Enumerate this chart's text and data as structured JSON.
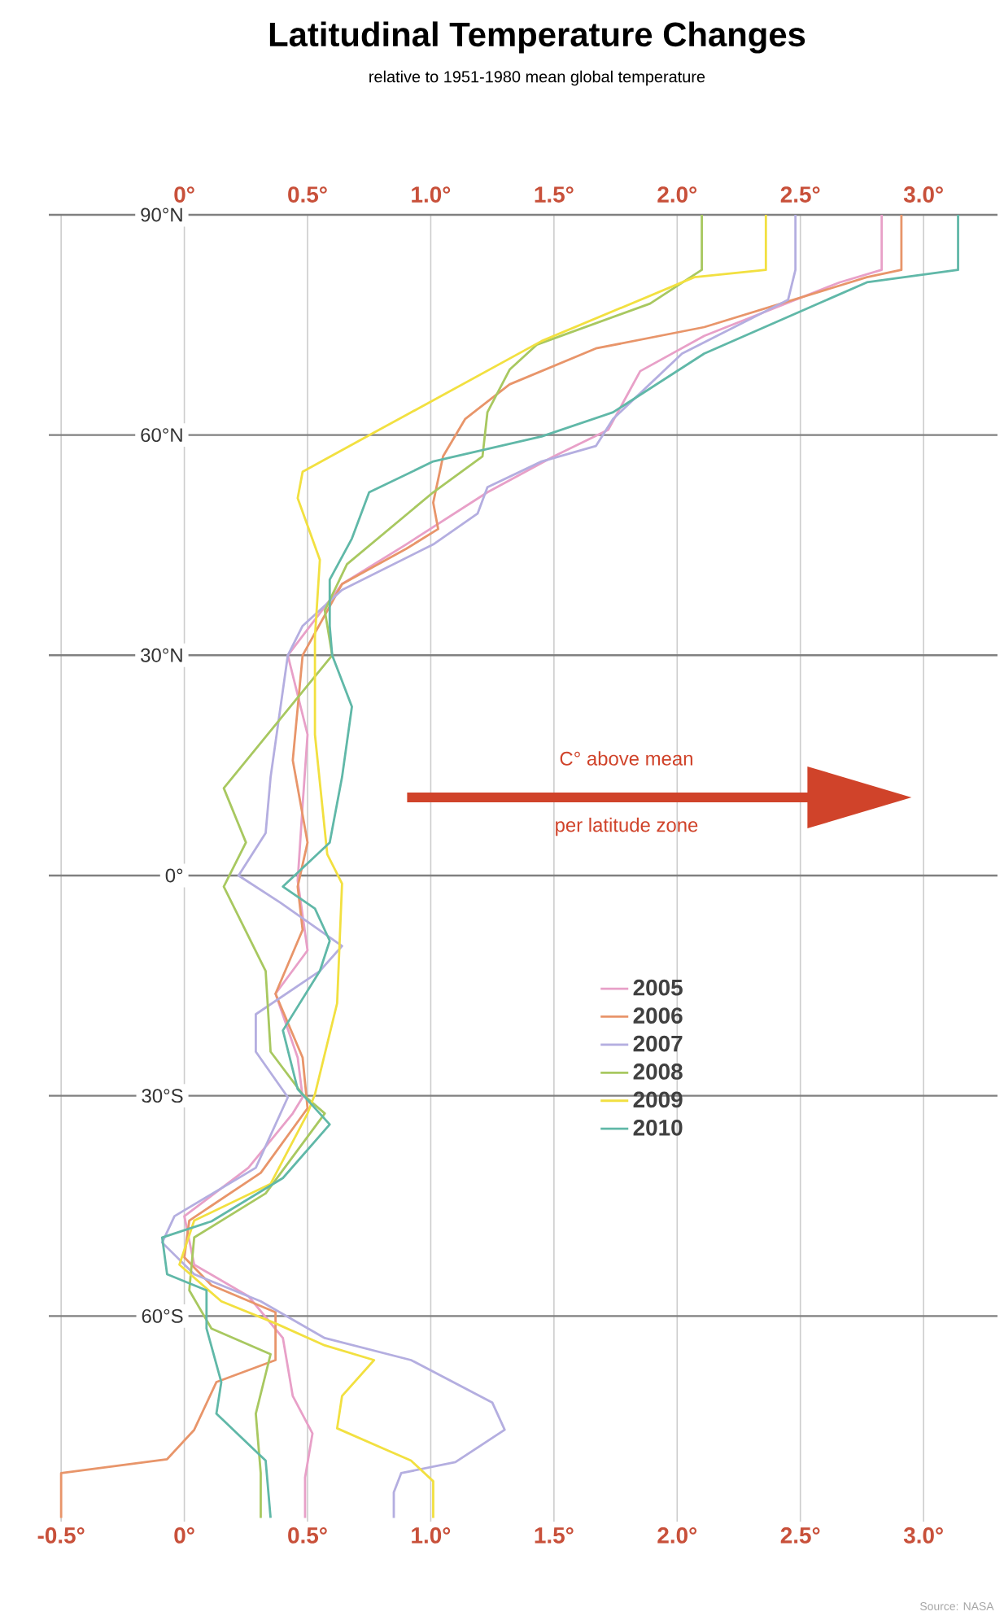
{
  "chart_data": {
    "type": "line",
    "title": "Latitudinal Temperature Changes",
    "subtitle": "relative to 1951-1980 mean global temperature",
    "xlim": [
      -0.55,
      3.3
    ],
    "ylim": [
      -88,
      90
    ],
    "xticks": [
      {
        "value": -0.5,
        "label": "-0.5°"
      },
      {
        "value": 0,
        "label": "0°"
      },
      {
        "value": 0.5,
        "label": "0.5°"
      },
      {
        "value": 1,
        "label": "1.0°"
      },
      {
        "value": 1.5,
        "label": "1.5°"
      },
      {
        "value": 2,
        "label": "2.0°"
      },
      {
        "value": 2.5,
        "label": "2.5°"
      },
      {
        "value": 3,
        "label": "3.0°"
      }
    ],
    "x2lim": [
      -0.55,
      3.3
    ],
    "x2ticks": [
      {
        "value": 0,
        "label": "0°"
      },
      {
        "value": 0.5,
        "label": "0.5°"
      },
      {
        "value": 1,
        "label": "1.0°"
      },
      {
        "value": 1.5,
        "label": "1.5°"
      },
      {
        "value": 2,
        "label": "2.0°"
      },
      {
        "value": 2.5,
        "label": "2.5°"
      },
      {
        "value": 3,
        "label": "3.0°"
      }
    ],
    "yticks": [
      {
        "value": 90,
        "label": "90°N"
      },
      {
        "value": 60,
        "label": "60°N"
      },
      {
        "value": 30,
        "label": "30°N"
      },
      {
        "value": 0,
        "label": "0°"
      },
      {
        "value": -30,
        "label": "30°S"
      },
      {
        "value": -60,
        "label": "60°S"
      }
    ],
    "grid": true,
    "legend": "right",
    "series": [
      {
        "name": "2005",
        "color": "#e8a0c8",
        "x": [
          2.83,
          2.83,
          2.66,
          2.11,
          1.85,
          1.72,
          1.5,
          1.23,
          0.9,
          0.64,
          0.42,
          0.5,
          0.48,
          0.46,
          0.5,
          0.37,
          0.46,
          0.48,
          0.44,
          0.26,
          0.0,
          0.04,
          0.26,
          0.4,
          0.44,
          0.52,
          0.49,
          0.49
        ],
        "values": [
          90,
          82.5,
          80.8,
          73.5,
          68.7,
          60.7,
          57.1,
          52.2,
          45.1,
          39.7,
          30,
          19.2,
          9.6,
          -0.7,
          -10.2,
          -16.1,
          -24.8,
          -30.2,
          -32.4,
          -39.8,
          -46.4,
          -53,
          -57.3,
          -63,
          -70.9,
          -76,
          -82,
          -87.5
        ]
      },
      {
        "name": "2006",
        "color": "#e8956a",
        "x": [
          2.91,
          2.91,
          2.77,
          2.11,
          1.67,
          1.32,
          1.14,
          1.05,
          1.01,
          1.03,
          0.9,
          0.64,
          0.48,
          0.44,
          0.5,
          0.46,
          0.48,
          0.37,
          0.48,
          0.5,
          0.31,
          0.02,
          0.0,
          0.11,
          0.37,
          0.37,
          0.13,
          0.04,
          -0.07,
          -0.5,
          -0.5
        ],
        "values": [
          90,
          82.5,
          81.5,
          74.7,
          71.8,
          66.9,
          62.2,
          57.1,
          50.8,
          47.2,
          44.5,
          39.7,
          30,
          15.7,
          4.5,
          -1.5,
          -7.4,
          -16.1,
          -24.8,
          -31.7,
          -40.5,
          -47,
          -52,
          -55.8,
          -59.5,
          -66,
          -69,
          -75.5,
          -79.5,
          -81.4,
          -87.5
        ]
      },
      {
        "name": "2007",
        "color": "#b4aee0",
        "x": [
          2.48,
          2.48,
          2.45,
          2.02,
          1.74,
          1.67,
          1.45,
          1.23,
          1.19,
          1.01,
          0.64,
          0.48,
          0.42,
          0.35,
          0.33,
          0.22,
          0.39,
          0.64,
          0.55,
          0.29,
          0.29,
          0.42,
          0.29,
          -0.04,
          -0.09,
          0.04,
          0.31,
          0.57,
          0.92,
          1.25,
          1.3,
          1.1,
          0.88,
          0.85,
          0.85
        ],
        "values": [
          90,
          82.5,
          78.4,
          71.1,
          62.2,
          58.5,
          56.4,
          52.9,
          49.3,
          45.1,
          38.9,
          34,
          30,
          13.4,
          5.8,
          0,
          -3.7,
          -9.6,
          -13,
          -18.9,
          -24,
          -30.2,
          -39.8,
          -46.4,
          -50,
          -54.3,
          -58,
          -63,
          -66,
          -71.8,
          -75.5,
          -79.9,
          -81.4,
          -84,
          -87.5
        ]
      },
      {
        "name": "2008",
        "color": "#a8c860",
        "x": [
          2.1,
          2.1,
          1.89,
          1.43,
          1.32,
          1.23,
          1.21,
          1.01,
          0.66,
          0.57,
          0.6,
          0.16,
          0.25,
          0.16,
          0.33,
          0.35,
          0.48,
          0.57,
          0.33,
          0.04,
          0.02,
          0.11,
          0.35,
          0.29,
          0.31,
          0.31
        ],
        "values": [
          90,
          82.5,
          77.9,
          72.3,
          68.9,
          63.1,
          57.1,
          52.2,
          42.4,
          36.1,
          30,
          11.9,
          4.5,
          -1.5,
          -13,
          -24,
          -29.8,
          -32.4,
          -43.3,
          -49.3,
          -56.5,
          -61.7,
          -65.2,
          -73.3,
          -81.4,
          -87.5
        ]
      },
      {
        "name": "2009",
        "color": "#f2e040",
        "x": [
          2.36,
          2.36,
          2.07,
          1.45,
          0.79,
          0.48,
          0.46,
          0.55,
          0.53,
          0.53,
          0.58,
          0.64,
          0.62,
          0.53,
          0.5,
          0.35,
          0.04,
          -0.02,
          0.15,
          0.37,
          0.57,
          0.77,
          0.64,
          0.62,
          0.92,
          1.01,
          1.01
        ],
        "values": [
          90,
          82.5,
          81.5,
          72.8,
          60.7,
          55,
          51.4,
          43,
          32.5,
          19.2,
          2.9,
          -1.1,
          -17.4,
          -29.8,
          -32.4,
          -42,
          -47,
          -53,
          -58,
          -61,
          -64,
          -66,
          -70.9,
          -75.3,
          -79.7,
          -82.5,
          -87.5
        ]
      },
      {
        "name": "2010",
        "color": "#60b8a8",
        "x": [
          3.14,
          3.14,
          2.77,
          2.11,
          1.74,
          1.45,
          1.01,
          0.75,
          0.68,
          0.59,
          0.59,
          0.6,
          0.68,
          0.64,
          0.59,
          0.4,
          0.53,
          0.59,
          0.55,
          0.4,
          0.46,
          0.59,
          0.4,
          0.11,
          -0.09,
          -0.07,
          0.09,
          0.09,
          0.15,
          0.13,
          0.33,
          0.35
        ],
        "values": [
          90,
          82.5,
          80.8,
          71.1,
          63.1,
          59.8,
          56.4,
          52.2,
          45.9,
          40.3,
          34,
          30,
          23,
          13.4,
          4.5,
          -1.5,
          -4.5,
          -8.9,
          -13,
          -21.1,
          -29.1,
          -33.9,
          -41.2,
          -47.1,
          -49.3,
          -54.3,
          -56.5,
          -61.7,
          -69,
          -73.3,
          -79.7,
          -87.5
        ]
      }
    ],
    "annotations": [
      "C° above mean",
      "per latitude zone",
      "Source: NASA"
    ]
  }
}
